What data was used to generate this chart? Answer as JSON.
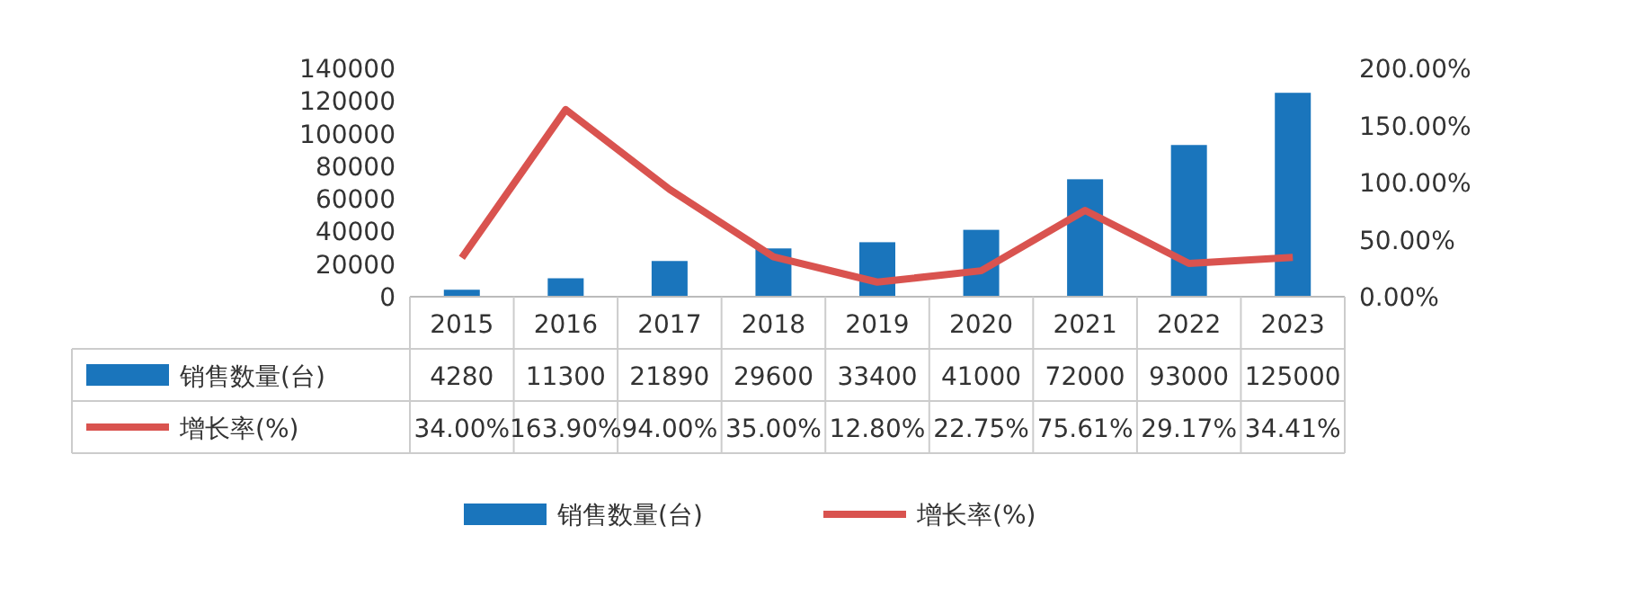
{
  "chart_data": {
    "type": "bar",
    "categories": [
      "2015",
      "2016",
      "2017",
      "2018",
      "2019",
      "2020",
      "2021",
      "2022",
      "2023"
    ],
    "series": [
      {
        "name": "销售数量(台)",
        "color": "#1a75bc",
        "values": [
          4280,
          11300,
          21890,
          29600,
          33400,
          41000,
          72000,
          93000,
          125000
        ],
        "value_labels": [
          "4280",
          "11300",
          "21890",
          "29600",
          "33400",
          "41000",
          "72000",
          "93000",
          "125000"
        ]
      },
      {
        "name": "增长率(%)",
        "type": "line",
        "axis": "y2",
        "color": "#d9534f",
        "values": [
          34.0,
          163.9,
          94.0,
          35.0,
          12.8,
          22.75,
          75.61,
          29.17,
          34.41
        ],
        "value_labels": [
          "34.00%",
          "163.90%",
          "94.00%",
          "35.00%",
          "12.80%",
          "22.75%",
          "75.61%",
          "29.17%",
          "34.41%"
        ]
      }
    ],
    "ylim": [
      0,
      140000
    ],
    "yticks": [
      0,
      20000,
      40000,
      60000,
      80000,
      100000,
      120000,
      140000
    ],
    "y2lim": [
      0,
      200
    ],
    "y2ticks": [
      {
        "value": 0,
        "label": "0.00%"
      },
      {
        "value": 50,
        "label": "50.00%"
      },
      {
        "value": 100,
        "label": "100.00%"
      },
      {
        "value": 150,
        "label": "150.00%"
      },
      {
        "value": 200,
        "label": "200.00%"
      }
    ],
    "grid": false,
    "legend": "bottom",
    "marker": "none",
    "line_style": "solid"
  }
}
